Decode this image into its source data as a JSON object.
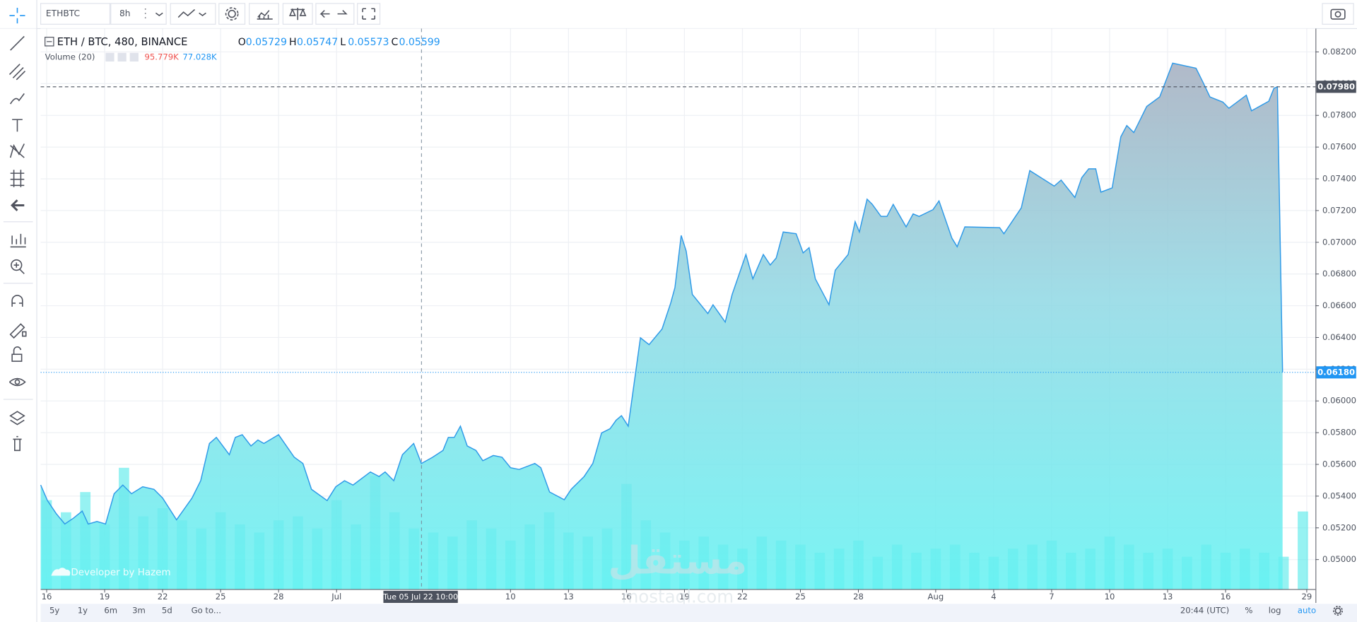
{
  "chart_data": [
    {
      "type": "area",
      "title": "ETH / BTC, 480, BINANCE",
      "color": "#2f9ae8",
      "ohlc": [
        {
          "name": "O",
          "value": 0.05729
        },
        {
          "name": "H",
          "value": 0.05747
        },
        {
          "name": "L",
          "value": 0.05573
        },
        {
          "name": "C",
          "value": 0.05599
        }
      ],
      "x": [
        -0.31,
        0.04,
        0.49,
        0.94,
        1.39,
        1.84,
        2.15,
        2.6,
        3.05,
        3.49,
        3.94,
        4.39,
        4.97,
        5.55,
        6.0,
        6.72,
        7.52,
        7.97,
        8.42,
        8.78,
        9.45,
        9.76,
        10.12,
        10.57,
        10.93,
        11.24,
        12.0,
        12.81,
        13.26,
        13.7,
        14.51,
        14.96,
        15.41,
        15.85,
        16.75,
        17.2,
        17.51,
        17.96,
        18.41,
        18.99,
        19.39,
        19.97,
        20.51,
        20.78,
        21.09,
        21.41,
        21.76,
        22.21,
        22.57,
        23.11,
        23.56,
        24.0,
        24.45,
        25.26,
        25.57,
        26.02,
        26.78,
        27.14,
        27.81,
        28.26,
        28.71,
        29.15,
        29.47,
        29.74,
        30.09,
        30.72,
        31.17,
        31.84,
        32.29,
        32.51,
        32.83,
        33.09,
        33.41,
        34.21,
        34.48,
        35.11,
        35.47,
        36.18,
        36.54,
        37.08,
        37.44,
        37.75,
        38.11,
        38.78,
        39.14,
        39.45,
        39.77,
        40.48,
        40.8,
        41.47,
        41.83,
        42.05,
        42.45,
        42.72,
        43.17,
        43.48,
        43.8,
        44.47,
        44.83,
        45.14,
        45.86,
        46.17,
        46.84,
        47.11,
        47.51,
        49.31,
        49.53,
        50.43,
        50.87,
        52.13,
        52.49,
        53.2,
        53.56,
        53.92,
        54.28,
        54.55,
        55.13,
        55.58,
        55.89,
        56.25,
        56.92,
        57.59,
        58.26,
        59.47,
        59.83,
        60.19,
        60.86,
        61.17,
        62.07,
        62.34,
        63.23,
        63.5,
        63.68,
        63.95
      ],
      "values": [
        0.0547,
        0.05372,
        0.0529,
        0.05224,
        0.05262,
        0.05306,
        0.05224,
        0.0524,
        0.05224,
        0.05415,
        0.0547,
        0.05415,
        0.05459,
        0.05443,
        0.05388,
        0.05251,
        0.05388,
        0.05497,
        0.05732,
        0.0577,
        0.05661,
        0.0577,
        0.05787,
        0.05716,
        0.05754,
        0.05732,
        0.05787,
        0.05645,
        0.05606,
        0.05443,
        0.05372,
        0.05459,
        0.05497,
        0.0547,
        0.05552,
        0.05524,
        0.05552,
        0.05497,
        0.05661,
        0.05732,
        0.05606,
        0.05645,
        0.05688,
        0.0577,
        0.0577,
        0.05841,
        0.05716,
        0.05688,
        0.05623,
        0.05656,
        0.05645,
        0.05579,
        0.05568,
        0.05606,
        0.05579,
        0.05426,
        0.05377,
        0.05443,
        0.05524,
        0.05606,
        0.05798,
        0.05825,
        0.05879,
        0.05907,
        0.05841,
        0.06398,
        0.06355,
        0.06453,
        0.06617,
        0.06715,
        0.07043,
        0.06944,
        0.06671,
        0.06551,
        0.06606,
        0.06497,
        0.06671,
        0.06923,
        0.0677,
        0.06923,
        0.06857,
        0.06901,
        0.07065,
        0.07054,
        0.06933,
        0.06966,
        0.0677,
        0.06606,
        0.06824,
        0.06923,
        0.0713,
        0.07065,
        0.07272,
        0.07239,
        0.07163,
        0.07163,
        0.07239,
        0.07097,
        0.07179,
        0.07163,
        0.07206,
        0.07261,
        0.07026,
        0.06972,
        0.07097,
        0.07092,
        0.07054,
        0.07217,
        0.07452,
        0.07354,
        0.07392,
        0.07283,
        0.07408,
        0.07463,
        0.07463,
        0.07316,
        0.07343,
        0.07665,
        0.07736,
        0.07692,
        0.07856,
        0.07916,
        0.08129,
        0.08097,
        0.08009,
        0.07916,
        0.07884,
        0.07845,
        0.07927,
        0.07829,
        0.07889,
        0.07971,
        0.0798,
        0.0618
      ],
      "xlim": [
        -0.31,
        65.65
      ],
      "xticks": [
        {
          "value": 0,
          "label": "16"
        },
        {
          "value": 3,
          "label": "19"
        },
        {
          "value": 6,
          "label": "22"
        },
        {
          "value": 9,
          "label": "25"
        },
        {
          "value": 12,
          "label": "28"
        },
        {
          "value": 15,
          "label": "Jul"
        },
        {
          "value": 24,
          "label": "10"
        },
        {
          "value": 27,
          "label": "13"
        },
        {
          "value": 30,
          "label": "16"
        },
        {
          "value": 33,
          "label": "19"
        },
        {
          "value": 36,
          "label": "22"
        },
        {
          "value": 39,
          "label": "25"
        },
        {
          "value": 42,
          "label": "28"
        },
        {
          "value": 46,
          "label": "Aug"
        },
        {
          "value": 49,
          "label": "4"
        },
        {
          "value": 52,
          "label": "7"
        },
        {
          "value": 55,
          "label": "10"
        },
        {
          "value": 58,
          "label": "13"
        },
        {
          "value": 61,
          "label": "16"
        },
        {
          "value": 65.2,
          "label": "29"
        }
      ],
      "ylim": [
        0.04814,
        0.08347
      ],
      "yticks": [
        {
          "value": 0.05,
          "label": "0.05000"
        },
        {
          "value": 0.052,
          "label": "0.05200"
        },
        {
          "value": 0.054,
          "label": "0.05400"
        },
        {
          "value": 0.056,
          "label": "0.05600"
        },
        {
          "value": 0.058,
          "label": "0.05800"
        },
        {
          "value": 0.06,
          "label": "0.06000"
        },
        {
          "value": 0.062,
          "label": "0.06200"
        },
        {
          "value": 0.064,
          "label": "0.06400"
        },
        {
          "value": 0.066,
          "label": "0.06600"
        },
        {
          "value": 0.068,
          "label": "0.06800"
        },
        {
          "value": 0.07,
          "label": "0.07000"
        },
        {
          "value": 0.072,
          "label": "0.07200"
        },
        {
          "value": 0.074,
          "label": "0.07400"
        },
        {
          "value": 0.076,
          "label": "0.07600"
        },
        {
          "value": 0.078,
          "label": "0.07800"
        },
        {
          "value": 0.08,
          "label": "0.08000"
        },
        {
          "value": 0.082,
          "label": "0.08200"
        }
      ],
      "price_lines": [
        {
          "value": 0.0798,
          "label": "0.07980",
          "color": "#4c525e"
        },
        {
          "value": 0.0618,
          "label": "0.06180",
          "color": "#2196f3"
        }
      ],
      "grid": true
    },
    {
      "type": "bar",
      "name": "Volume (20)",
      "color": "#2ee6e6",
      "legend_values": [
        {
          "value": 95779,
          "label": "95.779K",
          "color": "#ef5350"
        },
        {
          "value": 77028,
          "label": "77.028K",
          "color": "#2196f3"
        }
      ],
      "x": [
        0,
        1,
        2,
        3,
        4,
        5,
        6,
        7,
        8,
        9,
        10,
        11,
        12,
        13,
        14,
        15,
        16,
        17,
        18,
        19,
        20,
        21,
        22,
        23,
        24,
        25,
        26,
        27,
        28,
        29,
        30,
        31,
        32,
        33,
        34,
        35,
        36,
        37,
        38,
        39,
        40,
        41,
        42,
        43,
        44,
        45,
        46,
        47,
        48,
        49,
        50,
        51,
        52,
        53,
        54,
        55,
        56,
        57,
        58,
        59,
        60,
        61,
        62,
        63,
        64,
        65
      ],
      "values": [
        110000,
        95000,
        120000,
        80000,
        150000,
        90000,
        100000,
        85000,
        75000,
        95000,
        80000,
        70000,
        85000,
        90000,
        75000,
        110000,
        80000,
        140000,
        95000,
        75000,
        70000,
        65000,
        85000,
        75000,
        60000,
        80000,
        95000,
        70000,
        65000,
        75000,
        130000,
        85000,
        70000,
        60000,
        65000,
        55000,
        50000,
        65000,
        60000,
        55000,
        45000,
        50000,
        60000,
        40000,
        55000,
        45000,
        50000,
        55000,
        45000,
        40000,
        50000,
        55000,
        60000,
        45000,
        50000,
        65000,
        55000,
        45000,
        50000,
        40000,
        55000,
        45000,
        50000,
        45000,
        40000,
        96000
      ],
      "ylim": [
        0,
        300000
      ]
    }
  ],
  "ui": {
    "symbol": "ETHBTC",
    "interval": "8h",
    "ranges": [
      "5y",
      "1y",
      "6m",
      "3m",
      "5d"
    ],
    "goto": "Go to...",
    "time": "20:44 (UTC)",
    "scale_opts": [
      "%",
      "log",
      "auto"
    ],
    "crosshair": "Tue 05 Jul 22 10:00",
    "watermark": "Developer by Hazem",
    "brand": "مستقل",
    "brand_url": "mostaql.com"
  }
}
